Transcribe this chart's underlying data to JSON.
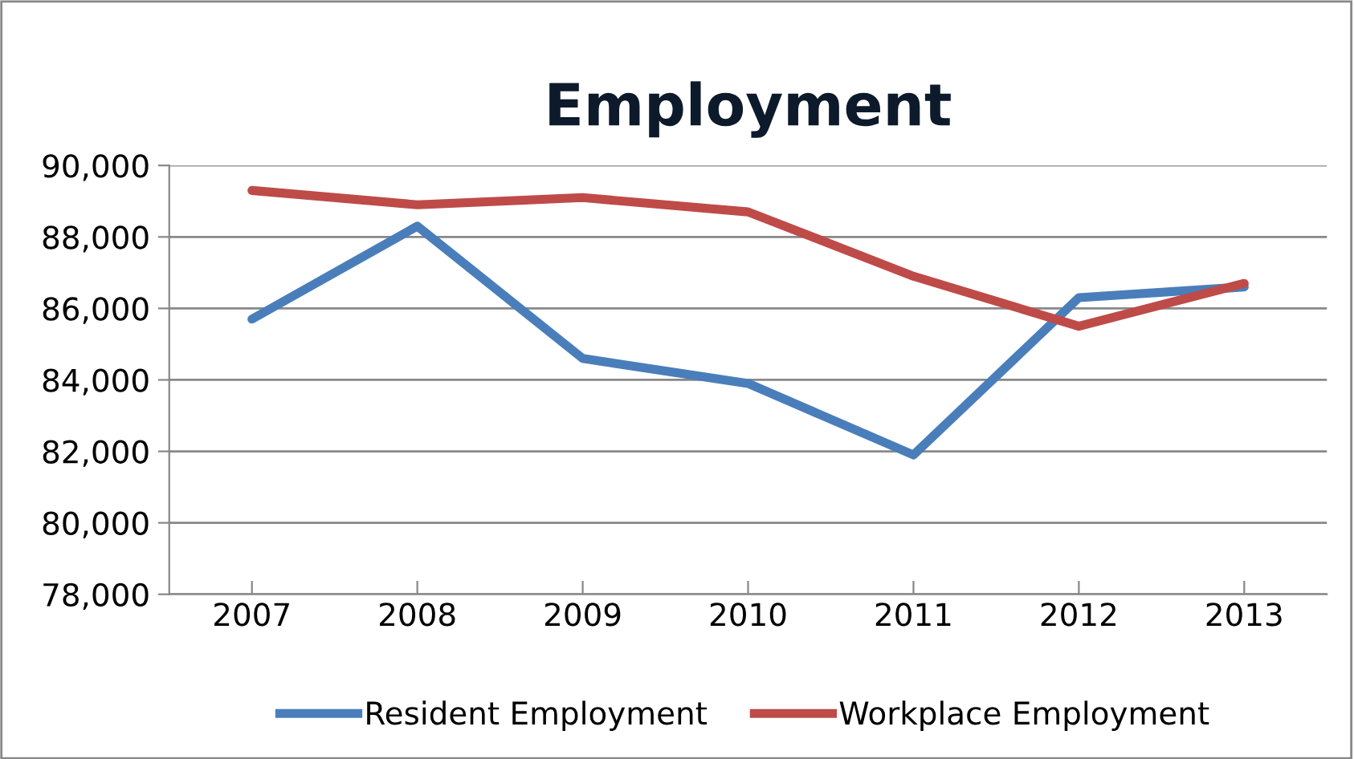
{
  "chart_data": {
    "type": "line",
    "title": "Employment",
    "categories": [
      "2007",
      "2008",
      "2009",
      "2010",
      "2011",
      "2012",
      "2013"
    ],
    "series": [
      {
        "name": "Resident Employment",
        "color": "#4a7ebb",
        "values": [
          85700,
          88300,
          84600,
          83900,
          81900,
          86300,
          86600
        ]
      },
      {
        "name": "Workplace Employment",
        "color": "#be4b48",
        "values": [
          89300,
          88900,
          89100,
          88700,
          86900,
          85500,
          86700
        ]
      }
    ],
    "ylim": [
      78000,
      90000
    ],
    "yticks": [
      {
        "value": 78000,
        "label": "78,000"
      },
      {
        "value": 80000,
        "label": "80,000"
      },
      {
        "value": 82000,
        "label": "82,000"
      },
      {
        "value": 84000,
        "label": "84,000"
      },
      {
        "value": 86000,
        "label": "86,000"
      },
      {
        "value": 88000,
        "label": "88,000"
      },
      {
        "value": 90000,
        "label": "90,000"
      }
    ],
    "grid": "y",
    "legend": "bottom",
    "marker": "none",
    "line_style": "solid"
  }
}
